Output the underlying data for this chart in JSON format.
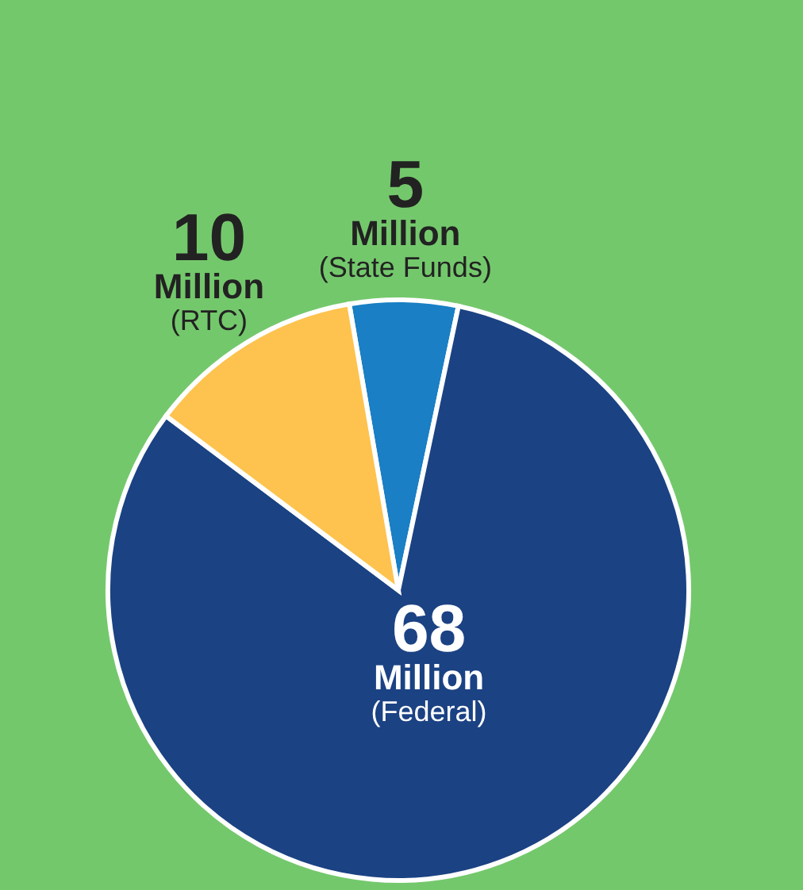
{
  "chart_data": {
    "type": "pie",
    "categories": [
      "(State Funds)",
      "(Federal)",
      "(RTC)"
    ],
    "values": [
      5,
      68,
      10
    ],
    "colors": [
      "#1a7fc4",
      "#1b4283",
      "#fdc34e"
    ],
    "data_labels": true,
    "annotations": [
      "Million",
      "Million",
      "Million"
    ]
  }
}
